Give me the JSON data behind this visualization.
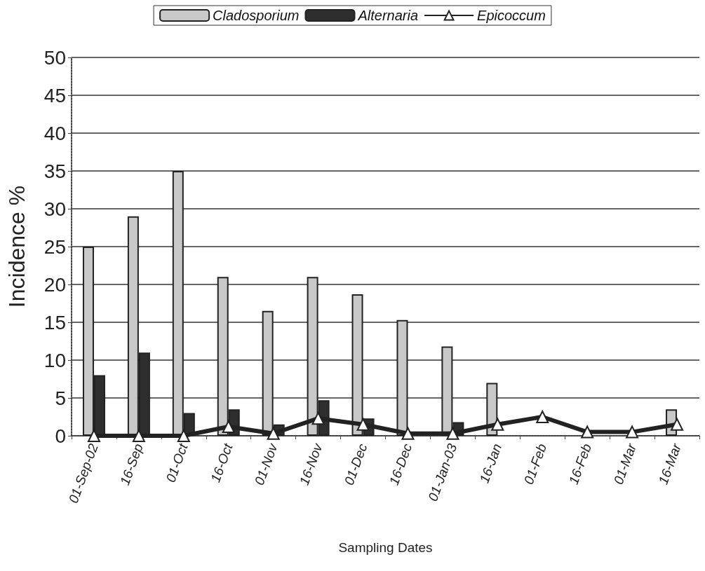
{
  "chart_data": {
    "type": "bar",
    "xlabel": "Sampling Dates",
    "ylabel": "Incidence %",
    "categories": [
      "01-Sep-02",
      "16-Sep",
      "01-Oct",
      "16-Oct",
      "01-Nov",
      "16-Nov",
      "01-Dec",
      "16-Dec",
      "01-Jan-03",
      "16-Jan",
      "01-Feb",
      "16-Feb",
      "01-Mar",
      "16-Mar"
    ],
    "series": [
      {
        "name": "Cladosporium",
        "color": "#c8c8c8",
        "values": [
          25,
          29,
          35,
          21,
          16.5,
          21,
          18.7,
          15.3,
          11.8,
          7,
          0,
          0,
          0,
          3.5
        ]
      },
      {
        "name": "Alternaria",
        "color": "#2e2e2e",
        "values": [
          8,
          11,
          3,
          3.5,
          1.5,
          4.7,
          2.3,
          0,
          1.8,
          0,
          0,
          0,
          0,
          0
        ]
      },
      {
        "name": "Epicoccum",
        "type": "line",
        "color": "#222222",
        "marker": "triangle",
        "values": [
          0,
          0,
          0,
          1.2,
          0.3,
          2.3,
          1.5,
          0.3,
          0.3,
          1.5,
          2.5,
          0.5,
          0.5,
          1.5
        ]
      }
    ],
    "ylim": [
      0,
      50
    ],
    "yticks": [
      0,
      5,
      10,
      15,
      20,
      25,
      30,
      35,
      40,
      45,
      50
    ],
    "grid": "y",
    "legend": "top"
  }
}
